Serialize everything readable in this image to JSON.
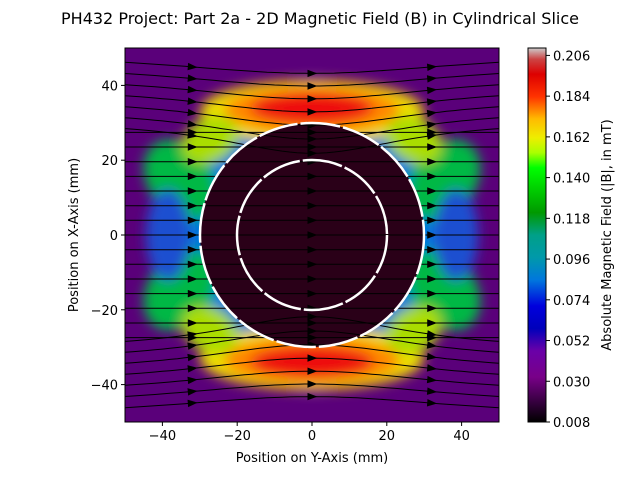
{
  "chart_data": {
    "type": "heatmap",
    "title": "PH432 Project: Part 2a - 2D Magnetic Field (B) in Cylindrical Slice",
    "xlabel": "Position on Y-Axis (mm)",
    "ylabel": "Position on X-Axis (mm)",
    "xlim": [
      -50,
      50
    ],
    "ylim": [
      -50,
      50
    ],
    "x_ticks": [
      -40,
      -20,
      0,
      20,
      40
    ],
    "y_ticks": [
      -40,
      -20,
      0,
      20,
      40
    ],
    "x_tick_labels": [
      "−40",
      "−20",
      "0",
      "20",
      "40"
    ],
    "y_tick_labels": [
      "−40",
      "−20",
      "0",
      "20",
      "40"
    ],
    "colorbar": {
      "label": "Absolute Magnetic Field (|B|, in mT)",
      "min": 0.008,
      "max": 0.21,
      "ticks": [
        0.008,
        0.03,
        0.052,
        0.074,
        0.096,
        0.118,
        0.14,
        0.162,
        0.184,
        0.206
      ],
      "tick_labels": [
        "0.008",
        "0.030",
        "0.052",
        "0.074",
        "0.096",
        "0.118",
        "0.140",
        "0.162",
        "0.184",
        "0.206"
      ],
      "colormap": "nipy_spectral"
    },
    "field_summary": {
      "inner_circle_radius_mm": 20,
      "outer_circle_radius_mm": 30,
      "peak_field_mT": 0.206,
      "peak_locations": "top and bottom of outer circle (x ≈ ±35 mm)",
      "interior_field_mT": 0.008,
      "streamlines": "black field lines with arrows, flowing along +y through and around the cylinder"
    },
    "annotations": {
      "circles": [
        {
          "name": "inner-circle",
          "radius_mm": 20,
          "style": "white dashed"
        },
        {
          "name": "outer-circle",
          "radius_mm": 30,
          "style": "white dashed"
        }
      ]
    }
  }
}
